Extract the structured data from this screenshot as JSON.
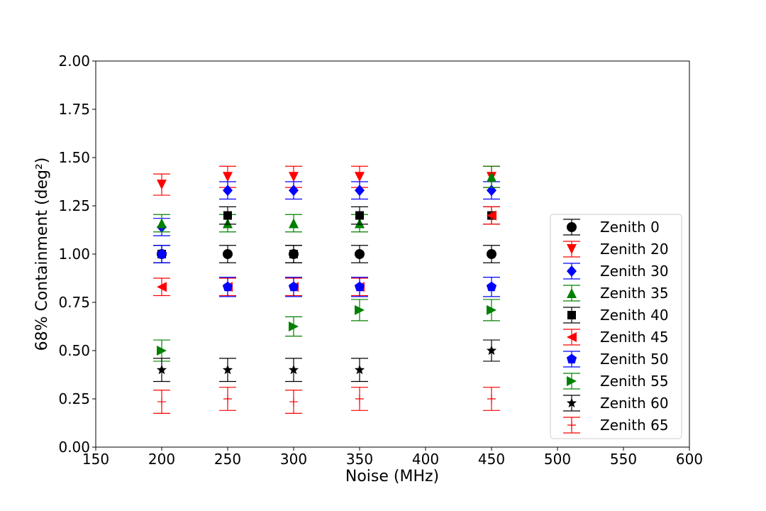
{
  "chart_data": {
    "type": "scatter",
    "title": "",
    "xlabel": "Noise (MHz)",
    "ylabel": "68% Containment (deg²)",
    "xlim": [
      150,
      600
    ],
    "ylim": [
      0.0,
      2.0
    ],
    "xticks": [
      150,
      200,
      250,
      300,
      350,
      400,
      450,
      500,
      550,
      600
    ],
    "xtick_labels": [
      "150",
      "200",
      "250",
      "300",
      "350",
      "400",
      "450",
      "500",
      "550",
      "600"
    ],
    "yticks": [
      0.0,
      0.25,
      0.5,
      0.75,
      1.0,
      1.25,
      1.5,
      1.75,
      2.0
    ],
    "ytick_labels": [
      "0.00",
      "0.25",
      "0.50",
      "0.75",
      "1.00",
      "1.25",
      "1.50",
      "1.75",
      "2.00"
    ],
    "grid": false,
    "legend_position": "lower-right",
    "error_bars": true,
    "series": [
      {
        "name": "Zenith 0",
        "color": "#000000",
        "marker": "circle",
        "x": [
          200,
          250,
          300,
          350,
          450
        ],
        "y": [
          1.0,
          1.0,
          1.0,
          1.0,
          1.0
        ],
        "yerr": [
          0.045,
          0.045,
          0.045,
          0.045,
          0.045
        ]
      },
      {
        "name": "Zenith 20",
        "color": "#ff0000",
        "marker": "triangle-down",
        "x": [
          200,
          250,
          300,
          350,
          450
        ],
        "y": [
          1.36,
          1.4,
          1.4,
          1.4,
          1.4
        ],
        "yerr": [
          0.055,
          0.055,
          0.055,
          0.055,
          0.055
        ]
      },
      {
        "name": "Zenith 30",
        "color": "#0000ff",
        "marker": "diamond",
        "x": [
          200,
          250,
          300,
          350,
          450
        ],
        "y": [
          1.14,
          1.33,
          1.33,
          1.33,
          1.33
        ],
        "yerr": [
          0.045,
          0.045,
          0.045,
          0.045,
          0.045
        ]
      },
      {
        "name": "Zenith 35",
        "color": "#008000",
        "marker": "triangle-up",
        "x": [
          200,
          250,
          300,
          350,
          450
        ],
        "y": [
          1.16,
          1.16,
          1.16,
          1.16,
          1.4
        ],
        "yerr": [
          0.045,
          0.045,
          0.045,
          0.045,
          0.055
        ]
      },
      {
        "name": "Zenith 40",
        "color": "#000000",
        "marker": "square",
        "x": [
          200,
          250,
          300,
          350,
          450
        ],
        "y": [
          1.0,
          1.2,
          1.0,
          1.2,
          1.2
        ],
        "yerr": [
          0.045,
          0.045,
          0.045,
          0.045,
          0.045
        ]
      },
      {
        "name": "Zenith 45",
        "color": "#ff0000",
        "marker": "triangle-left",
        "x": [
          200,
          250,
          300,
          350,
          450
        ],
        "y": [
          0.83,
          0.83,
          0.83,
          0.83,
          1.2
        ],
        "yerr": [
          0.045,
          0.045,
          0.045,
          0.045,
          0.045
        ]
      },
      {
        "name": "Zenith 50",
        "color": "#0000ff",
        "marker": "pentagon",
        "x": [
          200,
          250,
          300,
          350,
          450
        ],
        "y": [
          1.0,
          0.83,
          0.83,
          0.83,
          0.83
        ],
        "yerr": [
          0.045,
          0.05,
          0.05,
          0.05,
          0.05
        ]
      },
      {
        "name": "Zenith 55",
        "color": "#008000",
        "marker": "triangle-right",
        "x": [
          200,
          300,
          350,
          450
        ],
        "y": [
          0.5,
          0.625,
          0.71,
          0.71
        ],
        "yerr": [
          0.055,
          0.05,
          0.055,
          0.055
        ]
      },
      {
        "name": "Zenith 60",
        "color": "#000000",
        "marker": "star",
        "x": [
          200,
          250,
          300,
          350,
          450
        ],
        "y": [
          0.4,
          0.4,
          0.4,
          0.4,
          0.5
        ],
        "yerr": [
          0.06,
          0.06,
          0.06,
          0.06,
          0.055
        ]
      },
      {
        "name": "Zenith 65",
        "color": "#ff0000",
        "marker": "plus",
        "x": [
          200,
          250,
          300,
          350,
          450
        ],
        "y": [
          0.235,
          0.25,
          0.235,
          0.25,
          0.25
        ],
        "yerr": [
          0.06,
          0.06,
          0.06,
          0.06,
          0.06
        ]
      }
    ]
  }
}
